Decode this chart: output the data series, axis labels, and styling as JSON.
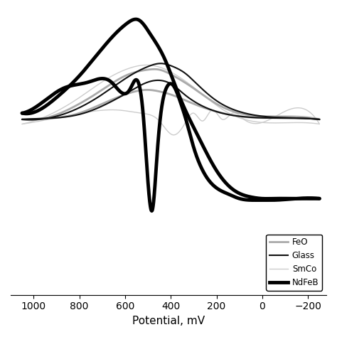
{
  "title": "",
  "xlabel": "Potential, mV",
  "ylabel": "",
  "xlim": [
    1100,
    -280
  ],
  "ylim": [
    -1.05,
    0.78
  ],
  "x_ticks": [
    1000,
    800,
    600,
    400,
    200,
    0,
    -200
  ],
  "legend_entries": [
    "FeO",
    "Glass",
    "SmCo",
    "NdFeB"
  ],
  "background": "#ffffff"
}
